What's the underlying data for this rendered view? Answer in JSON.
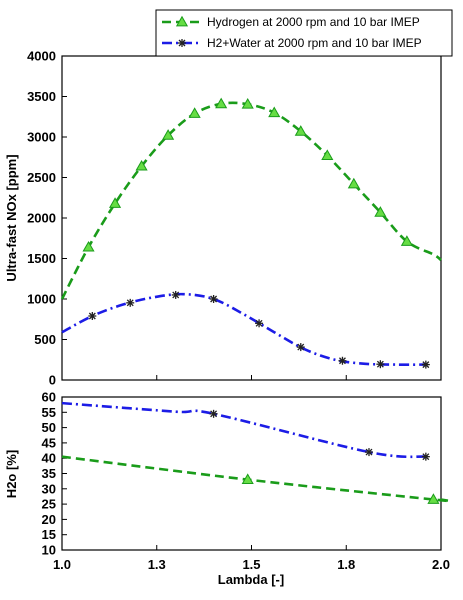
{
  "chart_data": [
    {
      "type": "line",
      "xlabel": "",
      "ylabel": "Ultra-fast NOx [ppm]",
      "ylim": [
        0,
        4000
      ],
      "yticks": [
        0,
        500,
        1000,
        1500,
        2000,
        2500,
        3000,
        3500,
        4000
      ],
      "xlim": [
        1.0,
        2.0
      ],
      "grid": false,
      "legend": "top",
      "series": [
        {
          "name": "Hydrogen at 2000 rpm and 10 bar IMEP",
          "color": "#1a9c1a",
          "dash": "dash",
          "marker": "triangle",
          "x": [
            1.0,
            1.07,
            1.14,
            1.21,
            1.28,
            1.35,
            1.42,
            1.49,
            1.56,
            1.63,
            1.7,
            1.77,
            1.84,
            1.91,
            1.98,
            2.0
          ],
          "y": [
            1000,
            1640,
            2180,
            2640,
            3020,
            3290,
            3410,
            3405,
            3300,
            3070,
            2770,
            2420,
            2070,
            1710,
            1550,
            1480
          ],
          "markers_at": [
            1.07,
            1.14,
            1.21,
            1.28,
            1.35,
            1.42,
            1.49,
            1.56,
            1.63,
            1.7,
            1.77,
            1.84,
            1.91
          ]
        },
        {
          "name": "H2+Water at 2000 rpm and 10 bar IMEP",
          "color": "#1c1ce6",
          "dash": "dashdot",
          "marker": "asterisk",
          "x": [
            1.0,
            1.08,
            1.16,
            1.24,
            1.32,
            1.4,
            1.48,
            1.56,
            1.64,
            1.72,
            1.8,
            1.88,
            1.96
          ],
          "y": [
            590,
            790,
            930,
            1020,
            1060,
            1000,
            810,
            590,
            380,
            250,
            200,
            190,
            190
          ],
          "markers_at": [
            1.08,
            1.18,
            1.3,
            1.4,
            1.52,
            1.63,
            1.74,
            1.84,
            1.96
          ]
        }
      ]
    },
    {
      "type": "line",
      "xlabel": "Lambda [-]",
      "ylabel": "H2o [%]",
      "ylim": [
        10,
        60
      ],
      "yticks": [
        10,
        15,
        20,
        25,
        30,
        35,
        40,
        45,
        50,
        55,
        60
      ],
      "xlim": [
        1.0,
        2.0
      ],
      "xticks": [
        "1.0",
        "1.3",
        "1.5",
        "1.8",
        "2.0"
      ],
      "grid": false,
      "series": [
        {
          "color": "#1c1ce6",
          "dash": "dashdot",
          "marker": "asterisk",
          "x": [
            1.0,
            1.3,
            1.4,
            1.81,
            1.96
          ],
          "y": [
            58,
            55.2,
            54.5,
            42,
            40.5
          ],
          "markers_at": [
            1.4,
            1.81,
            1.96
          ]
        },
        {
          "color": "#1a9c1a",
          "dash": "dash",
          "marker": "triangle",
          "x": [
            1.0,
            1.49,
            1.98,
            2.0
          ],
          "y": [
            40.5,
            33,
            26.5,
            26.5
          ],
          "markers_at": [
            1.49,
            1.98
          ]
        }
      ]
    }
  ]
}
